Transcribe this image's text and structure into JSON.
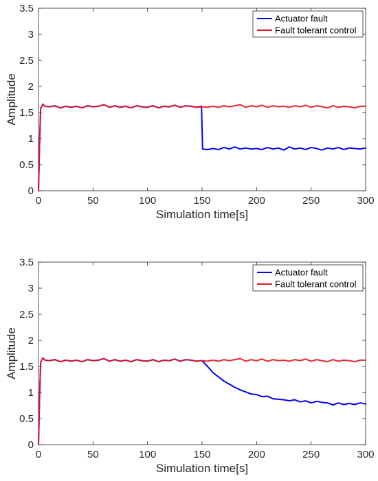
{
  "chart_data": [
    {
      "type": "line",
      "title": "",
      "xlabel": "Simulation time[s]",
      "ylabel": "Amplitude",
      "xlim": [
        0,
        300
      ],
      "ylim": [
        0,
        3.5
      ],
      "xticks": [
        "0",
        "50",
        "100",
        "150",
        "200",
        "250",
        "300"
      ],
      "yticks": [
        "0",
        "0.5",
        "1",
        "1.5",
        "2",
        "2.5",
        "3",
        "3.5"
      ],
      "grid": false,
      "legend_position": "top-right",
      "series": [
        {
          "name": "Actuator fault",
          "color": "#0000ff",
          "x": [
            0,
            1,
            2,
            4,
            6,
            10,
            15,
            20,
            25,
            30,
            35,
            40,
            45,
            50,
            55,
            60,
            65,
            70,
            75,
            80,
            85,
            90,
            95,
            100,
            105,
            110,
            115,
            120,
            125,
            130,
            135,
            140,
            145,
            149.5,
            150.5,
            155,
            160,
            165,
            170,
            175,
            180,
            185,
            190,
            195,
            200,
            205,
            210,
            215,
            220,
            225,
            230,
            235,
            240,
            245,
            250,
            255,
            260,
            265,
            270,
            275,
            280,
            285,
            290,
            295,
            300
          ],
          "y": [
            0,
            0.9,
            1.58,
            1.66,
            1.62,
            1.61,
            1.63,
            1.59,
            1.62,
            1.6,
            1.62,
            1.59,
            1.63,
            1.61,
            1.62,
            1.65,
            1.6,
            1.63,
            1.6,
            1.62,
            1.59,
            1.63,
            1.61,
            1.6,
            1.63,
            1.59,
            1.62,
            1.61,
            1.64,
            1.6,
            1.63,
            1.62,
            1.6,
            1.62,
            0.8,
            0.79,
            0.81,
            0.79,
            0.83,
            0.8,
            0.84,
            0.8,
            0.82,
            0.8,
            0.81,
            0.79,
            0.83,
            0.8,
            0.82,
            0.78,
            0.84,
            0.8,
            0.82,
            0.79,
            0.83,
            0.81,
            0.78,
            0.82,
            0.8,
            0.83,
            0.79,
            0.82,
            0.81,
            0.8,
            0.82
          ]
        },
        {
          "name": "Fault tolerant control",
          "color": "#e8141e",
          "x": [
            0,
            1,
            2,
            4,
            6,
            10,
            15,
            20,
            25,
            30,
            35,
            40,
            45,
            50,
            55,
            60,
            65,
            70,
            75,
            80,
            85,
            90,
            95,
            100,
            105,
            110,
            115,
            120,
            125,
            130,
            135,
            140,
            145,
            150,
            155,
            160,
            165,
            170,
            175,
            180,
            185,
            190,
            195,
            200,
            205,
            210,
            215,
            220,
            225,
            230,
            235,
            240,
            245,
            250,
            255,
            260,
            265,
            270,
            275,
            280,
            285,
            290,
            295,
            300
          ],
          "y": [
            0,
            0.9,
            1.58,
            1.66,
            1.62,
            1.61,
            1.63,
            1.59,
            1.62,
            1.6,
            1.62,
            1.59,
            1.63,
            1.61,
            1.62,
            1.65,
            1.6,
            1.63,
            1.6,
            1.62,
            1.59,
            1.63,
            1.61,
            1.6,
            1.63,
            1.59,
            1.62,
            1.61,
            1.64,
            1.6,
            1.63,
            1.62,
            1.6,
            1.61,
            1.6,
            1.62,
            1.6,
            1.63,
            1.61,
            1.63,
            1.65,
            1.6,
            1.63,
            1.61,
            1.64,
            1.6,
            1.63,
            1.61,
            1.62,
            1.6,
            1.63,
            1.61,
            1.64,
            1.6,
            1.63,
            1.61,
            1.59,
            1.63,
            1.6,
            1.62,
            1.61,
            1.59,
            1.62,
            1.62
          ]
        }
      ]
    },
    {
      "type": "line",
      "title": "",
      "xlabel": "Simulation time[s]",
      "ylabel": "Amplitude",
      "xlim": [
        0,
        300
      ],
      "ylim": [
        0,
        3.5
      ],
      "xticks": [
        "0",
        "50",
        "100",
        "150",
        "200",
        "250",
        "300"
      ],
      "yticks": [
        "0",
        "0.5",
        "1",
        "1.5",
        "2",
        "2.5",
        "3",
        "3.5"
      ],
      "grid": false,
      "legend_position": "top-right",
      "series": [
        {
          "name": "Actuator fault",
          "color": "#0000ff",
          "x": [
            0,
            1,
            2,
            4,
            6,
            10,
            15,
            20,
            25,
            30,
            35,
            40,
            45,
            50,
            55,
            60,
            65,
            70,
            75,
            80,
            85,
            90,
            95,
            100,
            105,
            110,
            115,
            120,
            125,
            130,
            135,
            140,
            145,
            150,
            155,
            160,
            165,
            170,
            175,
            180,
            185,
            190,
            195,
            200,
            205,
            210,
            215,
            220,
            225,
            230,
            235,
            240,
            245,
            250,
            255,
            260,
            265,
            270,
            275,
            280,
            285,
            290,
            295,
            300
          ],
          "y": [
            0,
            0.9,
            1.58,
            1.66,
            1.62,
            1.61,
            1.63,
            1.59,
            1.62,
            1.6,
            1.62,
            1.59,
            1.63,
            1.61,
            1.62,
            1.65,
            1.6,
            1.63,
            1.6,
            1.62,
            1.59,
            1.63,
            1.61,
            1.6,
            1.63,
            1.59,
            1.62,
            1.61,
            1.64,
            1.6,
            1.63,
            1.62,
            1.6,
            1.61,
            1.5,
            1.38,
            1.3,
            1.22,
            1.16,
            1.1,
            1.05,
            1.01,
            0.97,
            0.96,
            0.92,
            0.93,
            0.88,
            0.87,
            0.86,
            0.84,
            0.86,
            0.82,
            0.84,
            0.8,
            0.83,
            0.81,
            0.8,
            0.76,
            0.8,
            0.77,
            0.79,
            0.77,
            0.8,
            0.78
          ]
        },
        {
          "name": "Fault tolerant control",
          "color": "#e8141e",
          "x": [
            0,
            1,
            2,
            4,
            6,
            10,
            15,
            20,
            25,
            30,
            35,
            40,
            45,
            50,
            55,
            60,
            65,
            70,
            75,
            80,
            85,
            90,
            95,
            100,
            105,
            110,
            115,
            120,
            125,
            130,
            135,
            140,
            145,
            150,
            155,
            160,
            165,
            170,
            175,
            180,
            185,
            190,
            195,
            200,
            205,
            210,
            215,
            220,
            225,
            230,
            235,
            240,
            245,
            250,
            255,
            260,
            265,
            270,
            275,
            280,
            285,
            290,
            295,
            300
          ],
          "y": [
            0,
            0.9,
            1.58,
            1.66,
            1.62,
            1.61,
            1.63,
            1.59,
            1.62,
            1.6,
            1.62,
            1.59,
            1.63,
            1.61,
            1.62,
            1.65,
            1.6,
            1.63,
            1.6,
            1.62,
            1.59,
            1.63,
            1.61,
            1.6,
            1.63,
            1.59,
            1.62,
            1.61,
            1.64,
            1.6,
            1.63,
            1.62,
            1.6,
            1.61,
            1.6,
            1.62,
            1.6,
            1.63,
            1.61,
            1.63,
            1.65,
            1.6,
            1.63,
            1.61,
            1.64,
            1.6,
            1.63,
            1.61,
            1.62,
            1.6,
            1.63,
            1.61,
            1.64,
            1.6,
            1.63,
            1.61,
            1.59,
            1.63,
            1.6,
            1.62,
            1.61,
            1.59,
            1.62,
            1.62
          ]
        }
      ]
    }
  ]
}
